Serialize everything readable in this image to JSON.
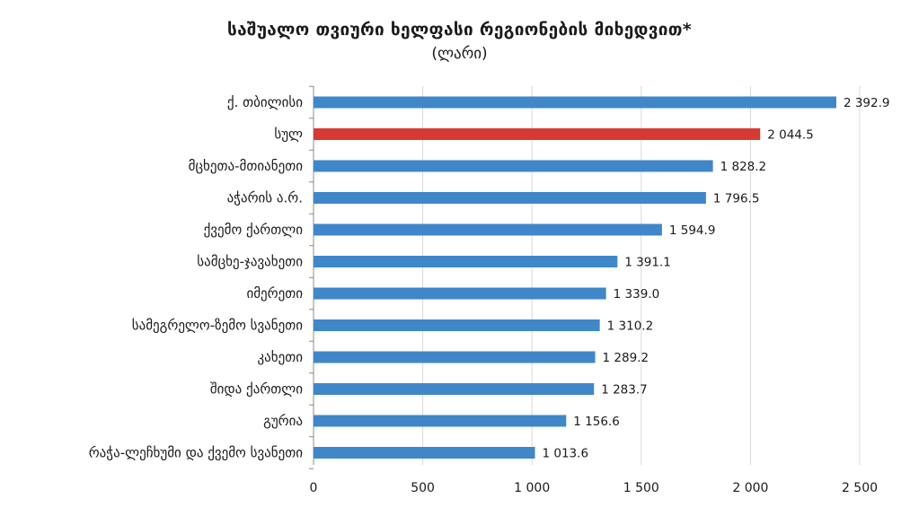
{
  "chart_data": {
    "type": "bar",
    "orientation": "horizontal",
    "title": "საშუალო თვიური ხელფასი რეგიონების მიხედვით*",
    "subtitle": "(ლარი)",
    "categories": [
      "ქ. თბილისი",
      "სულ",
      "მცხეთა-მთიანეთი",
      "აჭარის ა.რ.",
      "ქვემო ქართლი",
      "სამცხე-ჯავახეთი",
      "იმერეთი",
      "სამეგრელო-ზემო სვანეთი",
      "კახეთი",
      "შიდა ქართლი",
      "გურია",
      "რაჭა-ლეჩხუმი და ქვემო სვანეთი"
    ],
    "values": [
      2392.9,
      2044.5,
      1828.2,
      1796.5,
      1594.9,
      1391.1,
      1339.0,
      1310.2,
      1289.2,
      1283.7,
      1156.6,
      1013.6
    ],
    "value_labels": [
      "2 392.9",
      "2 044.5",
      "1 828.2",
      "1 796.5",
      "1 594.9",
      "1 391.1",
      "1 339.0",
      "1 310.2",
      "1 289.2",
      "1 283.7",
      "1 156.6",
      "1 013.6"
    ],
    "xlim": [
      0,
      2500
    ],
    "x_ticks": [
      0,
      500,
      1000,
      1500,
      2000,
      2500
    ],
    "x_tick_labels": [
      "0",
      "500",
      "1 000",
      "1 500",
      "2 000",
      "2 500"
    ],
    "grid": "vertical",
    "colors": {
      "bar": "#3F87C9",
      "highlight": "#D63A33",
      "grid": "#D9D9D9",
      "axis": "#8C8C8C"
    },
    "highlight_index": 1
  }
}
